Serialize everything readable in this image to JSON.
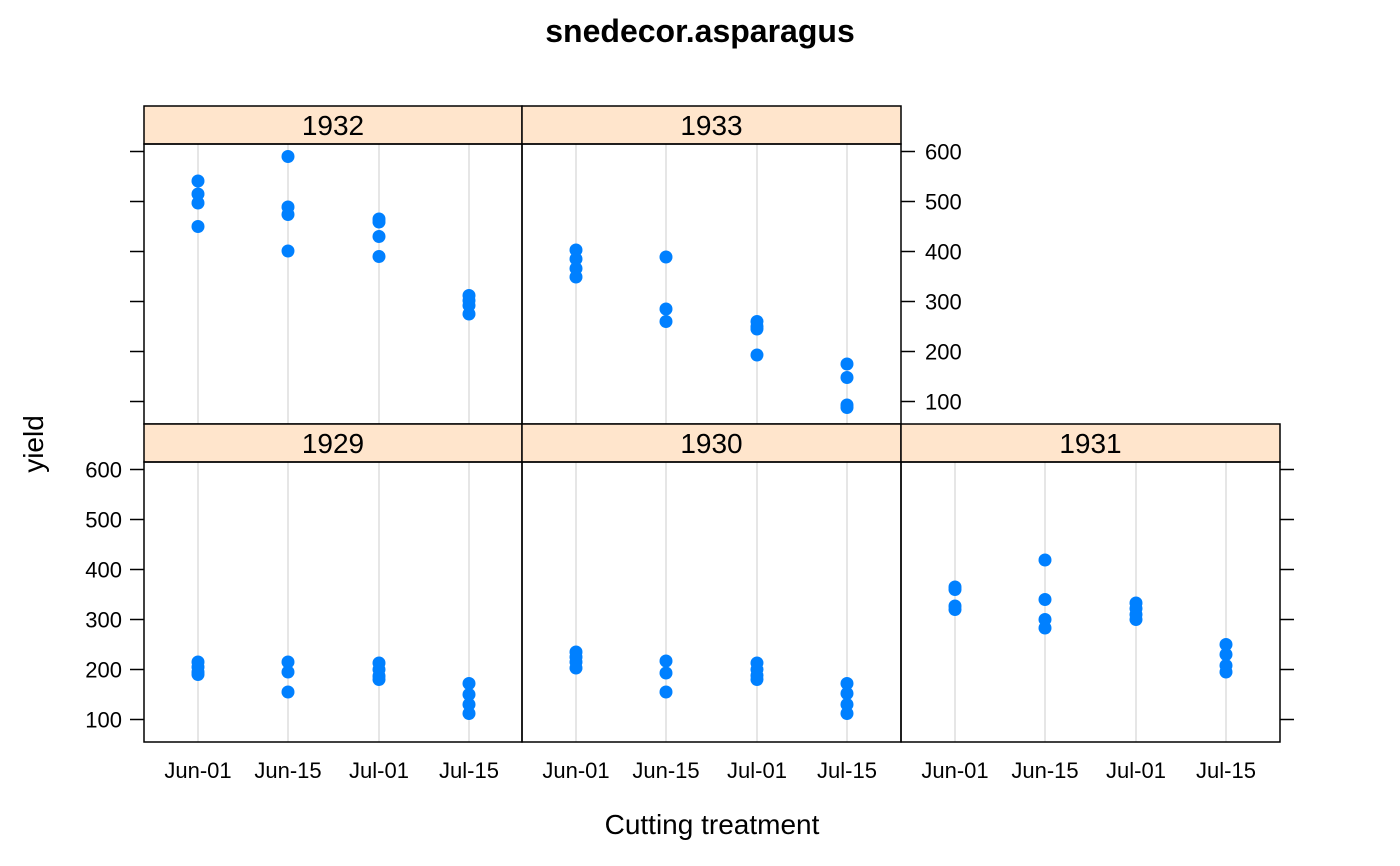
{
  "chart_data": {
    "type": "scatter",
    "title": "snedecor.asparagus",
    "xlabel": "Cutting treatment",
    "ylabel": "yield",
    "categories": [
      "Jun-01",
      "Jun-15",
      "Jul-01",
      "Jul-15"
    ],
    "ylim": [
      55,
      615
    ],
    "yticks": [
      100,
      200,
      300,
      400,
      500,
      600
    ],
    "grid": "vertical reference lines",
    "point_color": "#0080ff",
    "strip_color": "#ffe5cc",
    "gridline_color": "#e6e6e6",
    "panels": [
      {
        "strip": "1932",
        "series": [
          [
            541,
            515,
            497,
            450
          ],
          [
            590,
            489,
            474,
            401
          ],
          [
            465,
            459,
            430,
            390
          ],
          [
            312,
            302,
            292,
            275
          ]
        ]
      },
      {
        "strip": "1933",
        "series": [
          [
            403,
            385,
            366,
            349
          ],
          [
            389,
            285,
            260
          ],
          [
            260,
            250,
            245,
            193
          ],
          [
            175,
            148,
            93,
            88
          ]
        ]
      },
      {
        "strip": "1929",
        "series": [
          [
            215,
            205,
            195,
            190
          ],
          [
            215,
            195,
            155
          ],
          [
            213,
            200,
            187,
            180
          ],
          [
            172,
            150,
            130,
            112
          ]
        ]
      },
      {
        "strip": "1930",
        "series": [
          [
            235,
            225,
            215,
            203
          ],
          [
            217,
            193,
            155
          ],
          [
            213,
            200,
            188,
            180
          ],
          [
            172,
            152,
            130,
            112
          ]
        ]
      },
      {
        "strip": "1931",
        "series": [
          [
            365,
            360,
            327,
            320
          ],
          [
            419,
            340,
            300,
            283
          ],
          [
            333,
            322,
            310,
            300
          ],
          [
            250,
            230,
            208,
            195
          ]
        ]
      }
    ]
  }
}
